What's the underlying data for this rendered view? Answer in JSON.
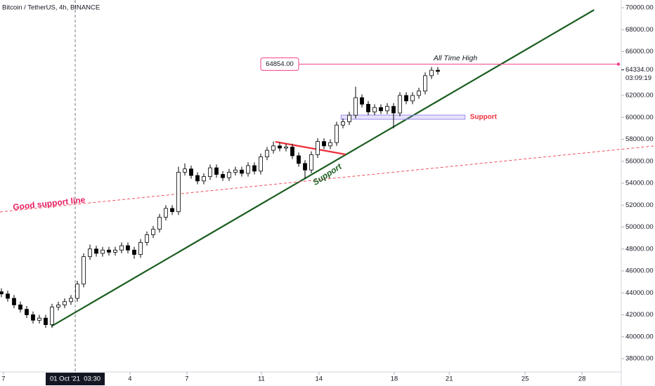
{
  "chart_data": {
    "type": "candlestick",
    "title": "Bitcoin / TetherUS, 4h, BINANCE",
    "xlim": [
      -0.22,
      103.11
    ],
    "ylim": [
      36784,
      70704
    ],
    "yticks": [
      {
        "value": 70000,
        "label": "70000.00"
      },
      {
        "value": 68000,
        "label": "68000.00"
      },
      {
        "value": 66000,
        "label": "66000.00"
      },
      {
        "value": 62000,
        "label": "62000.00"
      },
      {
        "value": 60000,
        "label": "60000.00"
      },
      {
        "value": 58000,
        "label": "58000.00"
      },
      {
        "value": 56000,
        "label": "56000.00"
      },
      {
        "value": 54000,
        "label": "54000.00"
      },
      {
        "value": 52000,
        "label": "52000.00"
      },
      {
        "value": 50000,
        "label": "50000.00"
      },
      {
        "value": 48000,
        "label": "48000.00"
      },
      {
        "value": 46000,
        "label": "46000.00"
      },
      {
        "value": 44000,
        "label": "44000.00"
      },
      {
        "value": 42000,
        "label": "42000.00"
      },
      {
        "value": 40000,
        "label": "40000.00"
      },
      {
        "value": 38000,
        "label": "38000.00"
      }
    ],
    "xticks": [
      {
        "value": 0.33,
        "label": "7"
      },
      {
        "value": 20.33,
        "label": "4"
      },
      {
        "value": 29.33,
        "label": "7"
      },
      {
        "value": 41.1,
        "label": "11"
      },
      {
        "value": 50.2,
        "label": "14"
      },
      {
        "value": 62.1,
        "label": "18"
      },
      {
        "value": 70.8,
        "label": "21"
      },
      {
        "value": 82.8,
        "label": "25"
      },
      {
        "value": 91.8,
        "label": "28"
      }
    ],
    "crosshair": {
      "value": 11.67,
      "label": "01 Oct '21  03:30"
    },
    "up_color": "#ffffff",
    "down_color": "#000000",
    "outline_color": "#000000",
    "open": [
      44100,
      43900,
      43500,
      42900,
      42500,
      42000,
      41500,
      41700,
      41100,
      42700,
      42900,
      43200,
      43500,
      44800,
      47300,
      48000,
      47600,
      47900,
      47700,
      47900,
      48300,
      47900,
      47500,
      48600,
      49300,
      49800,
      50900,
      51700,
      51400,
      55000,
      55300,
      54700,
      54200,
      54600,
      55400,
      54800,
      54500,
      55000,
      55200,
      54900,
      55600,
      55100,
      56400,
      57000,
      57400,
      57200,
      57300,
      56500,
      55800,
      55200,
      56600,
      57800,
      57400,
      57700,
      59300,
      59600,
      60200,
      61800,
      61200,
      60500,
      60900,
      60600,
      61000,
      60400,
      62000,
      61500,
      62000,
      62400,
      63800,
      64300
    ],
    "high": [
      44400,
      44200,
      43800,
      43200,
      42800,
      42300,
      42000,
      42000,
      43000,
      43200,
      43500,
      43800,
      45100,
      47600,
      48400,
      48300,
      48200,
      48200,
      48200,
      48600,
      48600,
      48200,
      48900,
      49600,
      50100,
      51200,
      52000,
      52000,
      55500,
      55800,
      55600,
      55000,
      54900,
      55700,
      55700,
      55100,
      55300,
      55500,
      55500,
      55900,
      55900,
      56700,
      57300,
      57800,
      57700,
      57600,
      57600,
      56800,
      56100,
      56900,
      58100,
      58100,
      58000,
      59600,
      59900,
      60500,
      62800,
      62100,
      61500,
      61200,
      61200,
      61300,
      61300,
      62300,
      62300,
      62300,
      62700,
      64100,
      64600,
      64600
    ],
    "low": [
      43600,
      43200,
      42600,
      42200,
      41700,
      41200,
      41200,
      40800,
      40800,
      42400,
      42600,
      42900,
      43200,
      44500,
      47000,
      47300,
      47300,
      47400,
      47400,
      47600,
      47600,
      47100,
      47200,
      48300,
      49000,
      49500,
      50600,
      51100,
      51100,
      54700,
      54400,
      53900,
      53900,
      54300,
      54500,
      54200,
      54200,
      54700,
      54600,
      54600,
      54800,
      54800,
      56100,
      56700,
      56900,
      56900,
      56200,
      55500,
      54400,
      54900,
      56300,
      57100,
      57100,
      57400,
      59000,
      59300,
      59900,
      60900,
      60200,
      60200,
      60300,
      60300,
      59000,
      60100,
      61200,
      61200,
      61700,
      62100,
      63500,
      63900
    ],
    "close": [
      43900,
      43500,
      42900,
      42500,
      42000,
      41500,
      41700,
      41100,
      42700,
      42900,
      43200,
      43500,
      44800,
      47300,
      48000,
      47600,
      47900,
      47700,
      47900,
      48300,
      47900,
      47500,
      48600,
      49300,
      49800,
      50900,
      51700,
      51400,
      55000,
      55300,
      54700,
      54200,
      54600,
      55400,
      54800,
      54500,
      55000,
      55200,
      54900,
      55600,
      55100,
      56400,
      57000,
      57400,
      57200,
      57300,
      56500,
      55800,
      55200,
      56600,
      57800,
      57400,
      57700,
      59300,
      59600,
      60200,
      61800,
      61200,
      60500,
      60900,
      60600,
      61000,
      60400,
      62000,
      61500,
      62000,
      62400,
      63800,
      64300,
      64200
    ],
    "last_price": {
      "value": 64334,
      "label": "64334.00"
    },
    "countdown": "03:09:19",
    "ath": {
      "value": 64854,
      "label": "64854.00",
      "from": 47,
      "color": "#f23d8a",
      "text": "All Time High"
    },
    "lines": [
      {
        "color": "#1b5e20",
        "dashed": false,
        "points": [
          [
            7.9,
            40950
          ],
          [
            93.7,
            69800
          ]
        ]
      },
      {
        "color": "#f05060",
        "dashed": true,
        "points": [
          [
            -0.22,
            51376
          ],
          [
            103.11,
            57392
          ]
        ]
      },
      {
        "color": "#f0303c",
        "dashed": false,
        "points": [
          [
            43.3,
            57776
          ],
          [
            54.4,
            56624
          ]
        ]
      }
    ],
    "zone": {
      "x": [
        53.7,
        73.3
      ],
      "price": [
        59824,
        60208
      ],
      "color": "#9c8cf0",
      "text": "Support"
    },
    "labels": [
      "Good support line",
      "Support"
    ]
  }
}
